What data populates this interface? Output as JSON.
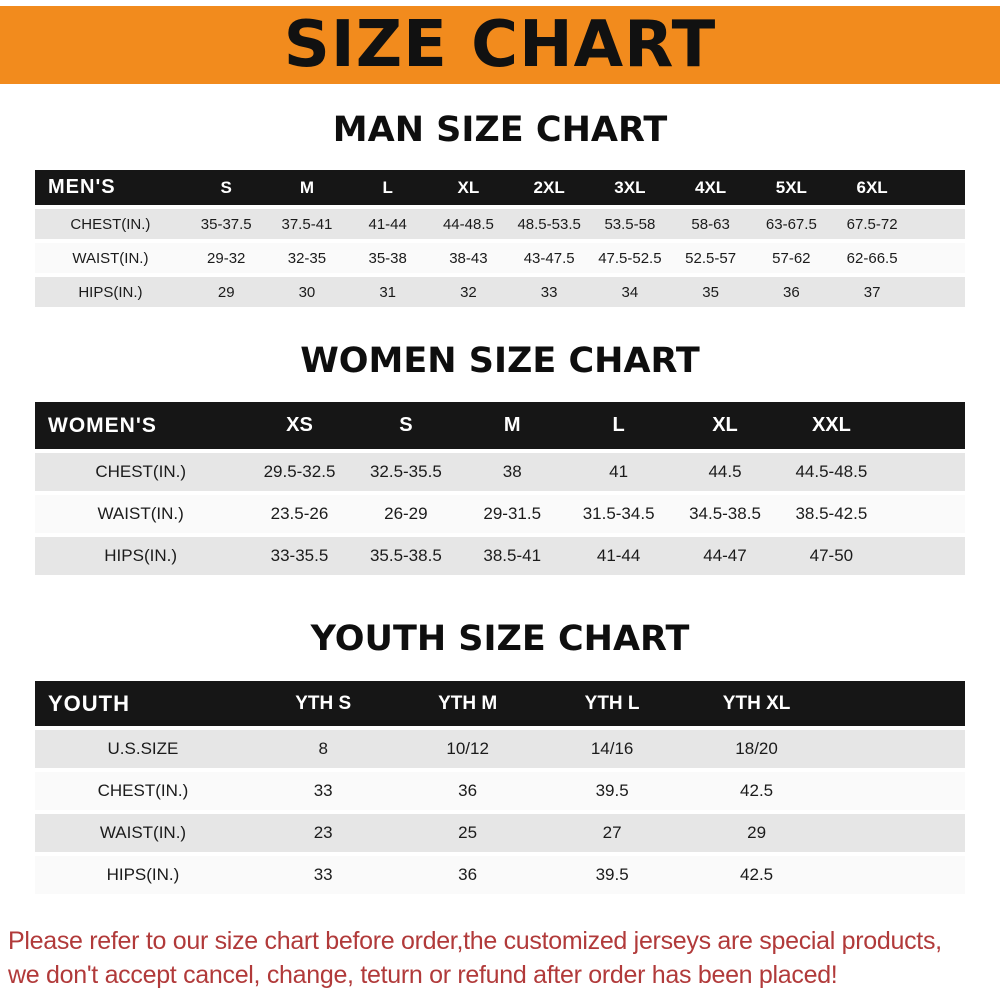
{
  "banner": {
    "title": "SIZE CHART"
  },
  "tables": [
    {
      "heading": "MAN SIZE CHART",
      "header_label": "MEN'S",
      "columns": [
        "S",
        "M",
        "L",
        "XL",
        "2XL",
        "3XL",
        "4XL",
        "5XL",
        "6XL"
      ],
      "rows": [
        {
          "label": "CHEST(IN.)",
          "values": [
            "35-37.5",
            "37.5-41",
            "41-44",
            "44-48.5",
            "48.5-53.5",
            "53.5-58",
            "58-63",
            "63-67.5",
            "67.5-72"
          ]
        },
        {
          "label": "WAIST(IN.)",
          "values": [
            "29-32",
            "32-35",
            "35-38",
            "38-43",
            "43-47.5",
            "47.5-52.5",
            "52.5-57",
            "57-62",
            "62-66.5"
          ]
        },
        {
          "label": "HIPS(IN.)",
          "values": [
            "29",
            "30",
            "31",
            "32",
            "33",
            "34",
            "35",
            "36",
            "37"
          ]
        }
      ]
    },
    {
      "heading": "WOMEN SIZE CHART",
      "header_label": "WOMEN'S",
      "columns": [
        "XS",
        "S",
        "M",
        "L",
        "XL",
        "XXL"
      ],
      "rows": [
        {
          "label": "CHEST(IN.)",
          "values": [
            "29.5-32.5",
            "32.5-35.5",
            "38",
            "41",
            "44.5",
            "44.5-48.5"
          ]
        },
        {
          "label": "WAIST(IN.)",
          "values": [
            "23.5-26",
            "26-29",
            "29-31.5",
            "31.5-34.5",
            "34.5-38.5",
            "38.5-42.5"
          ]
        },
        {
          "label": "HIPS(IN.)",
          "values": [
            "33-35.5",
            "35.5-38.5",
            "38.5-41",
            "41-44",
            "44-47",
            "47-50"
          ]
        }
      ]
    },
    {
      "heading": "YOUTH SIZE CHART",
      "header_label": "YOUTH",
      "columns": [
        "YTH S",
        "YTH M",
        "YTH L",
        "YTH XL"
      ],
      "rows": [
        {
          "label": "U.S.SIZE",
          "values": [
            "8",
            "10/12",
            "14/16",
            "18/20"
          ]
        },
        {
          "label": "CHEST(IN.)",
          "values": [
            "33",
            "36",
            "39.5",
            "42.5"
          ]
        },
        {
          "label": "WAIST(IN.)",
          "values": [
            "23",
            "25",
            "27",
            "29"
          ]
        },
        {
          "label": "HIPS(IN.)",
          "values": [
            "33",
            "36",
            "39.5",
            "42.5"
          ]
        }
      ]
    }
  ],
  "notice": {
    "line1": "Please refer to our size chart before order,the customized jerseys are special products,",
    "line2": "we don't accept cancel, change, teturn or refund after order has been placed!"
  },
  "theme": {
    "banner_bg": "#f28b1d",
    "header_bg": "#161616",
    "header_text": "#ffffff",
    "row_shaded_bg": "#e6e6e6",
    "row_plain_bg": "#fafafa",
    "notice_color": "#b13a3a",
    "title_color": "#111111"
  }
}
